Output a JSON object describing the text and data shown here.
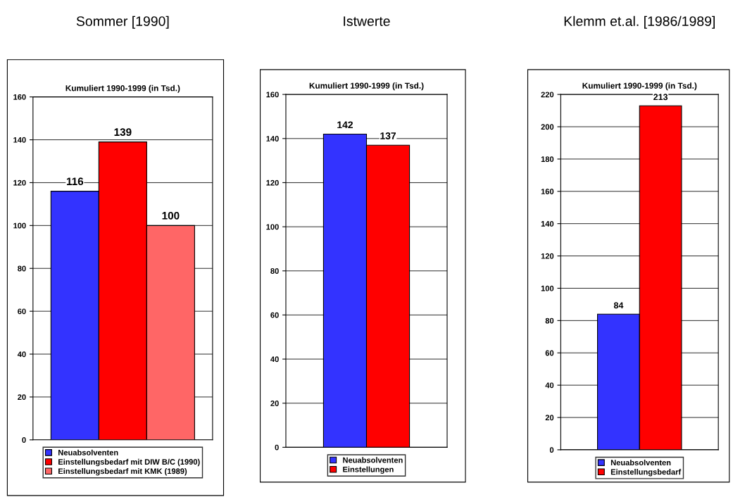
{
  "chart_data": [
    {
      "type": "bar",
      "title": "Sommer [1990]",
      "subtitle": "Kumuliert 1990-1999 (in Tsd.)",
      "categories": [
        null
      ],
      "ylim": [
        0,
        160
      ],
      "yticks": [
        0,
        20,
        40,
        60,
        80,
        100,
        120,
        140,
        160
      ],
      "grid": "y",
      "legend": "bottom",
      "data_labels": true,
      "tick_labels": "y",
      "series": [
        {
          "name": "Neuabsolventen",
          "color": "#3333ff",
          "values": [
            116
          ]
        },
        {
          "name": "Einstellungsbedarf mit DIW B/C (1990)",
          "color": "#ff0000",
          "values": [
            139
          ]
        },
        {
          "name": "Einstellungsbedarf mit KMK (1989)",
          "color": "#ff6666",
          "values": [
            100
          ]
        }
      ]
    },
    {
      "type": "bar",
      "title": "Istwerte",
      "subtitle": "Kumuliert 1990-1999 (in Tsd.)",
      "categories": [
        null
      ],
      "ylim": [
        0,
        160
      ],
      "yticks": [
        0,
        20,
        40,
        60,
        80,
        100,
        120,
        140,
        160
      ],
      "grid": "y",
      "legend": "bottom",
      "data_labels": true,
      "tick_labels": "y",
      "series": [
        {
          "name": "Neuabsolventen",
          "color": "#3333ff",
          "values": [
            142
          ]
        },
        {
          "name": "Einstellungen",
          "color": "#ff0000",
          "values": [
            137
          ]
        }
      ]
    },
    {
      "type": "bar",
      "title": "Klemm et.al. [1986/1989]",
      "subtitle": "Kumuliert 1990-1999 (in Tsd.)",
      "categories": [
        null
      ],
      "ylim": [
        0,
        220
      ],
      "yticks": [
        0,
        20,
        40,
        60,
        80,
        100,
        120,
        140,
        160,
        180,
        200,
        220
      ],
      "grid": "y",
      "legend": "bottom",
      "data_labels": true,
      "tick_labels": "y",
      "series": [
        {
          "name": "Neuabsolventen",
          "color": "#3333ff",
          "values": [
            84
          ]
        },
        {
          "name": "Einstellungsbedarf",
          "color": "#ff0000",
          "values": [
            213
          ]
        }
      ]
    }
  ]
}
